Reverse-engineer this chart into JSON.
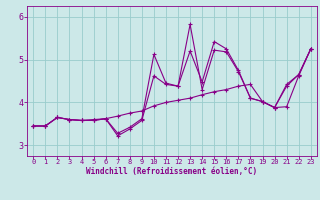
{
  "xlabel": "Windchill (Refroidissement éolien,°C)",
  "bg_color": "#cce8e8",
  "line_color": "#880088",
  "grid_color": "#99cccc",
  "xlim": [
    -0.5,
    23.5
  ],
  "ylim": [
    2.75,
    6.25
  ],
  "yticks": [
    3,
    4,
    5,
    6
  ],
  "xticks": [
    0,
    1,
    2,
    3,
    4,
    5,
    6,
    7,
    8,
    9,
    10,
    11,
    12,
    13,
    14,
    15,
    16,
    17,
    18,
    19,
    20,
    21,
    22,
    23
  ],
  "series1_x": [
    0,
    1,
    2,
    3,
    4,
    5,
    6,
    7,
    8,
    9,
    10,
    11,
    12,
    13,
    14,
    15,
    16,
    17,
    18,
    19,
    20,
    21,
    22,
    23
  ],
  "series1_y": [
    3.45,
    3.45,
    3.65,
    3.6,
    3.58,
    3.6,
    3.62,
    3.68,
    3.75,
    3.8,
    3.92,
    4.0,
    4.05,
    4.1,
    4.18,
    4.25,
    4.3,
    4.38,
    4.42,
    4.02,
    3.88,
    3.9,
    4.62,
    5.25
  ],
  "series2_x": [
    0,
    1,
    2,
    3,
    4,
    5,
    6,
    7,
    8,
    9,
    10,
    11,
    12,
    13,
    14,
    15,
    16,
    17,
    18,
    19,
    20,
    21,
    22,
    23
  ],
  "series2_y": [
    3.45,
    3.45,
    3.65,
    3.6,
    3.58,
    3.58,
    3.62,
    3.22,
    3.38,
    3.58,
    4.62,
    4.42,
    4.38,
    5.82,
    4.3,
    5.22,
    5.18,
    4.72,
    4.1,
    4.02,
    3.88,
    4.42,
    4.65,
    5.25
  ],
  "series3_x": [
    0,
    1,
    2,
    3,
    4,
    5,
    6,
    7,
    8,
    9,
    10,
    11,
    12,
    13,
    14,
    15,
    16,
    17,
    18,
    19,
    20,
    21,
    22,
    23
  ],
  "series3_y": [
    3.45,
    3.45,
    3.65,
    3.6,
    3.58,
    3.58,
    3.62,
    3.28,
    3.42,
    3.62,
    5.12,
    4.45,
    4.38,
    5.2,
    4.48,
    5.42,
    5.25,
    4.75,
    4.1,
    4.02,
    3.88,
    4.38,
    4.65,
    5.25
  ],
  "font_family": "monospace"
}
